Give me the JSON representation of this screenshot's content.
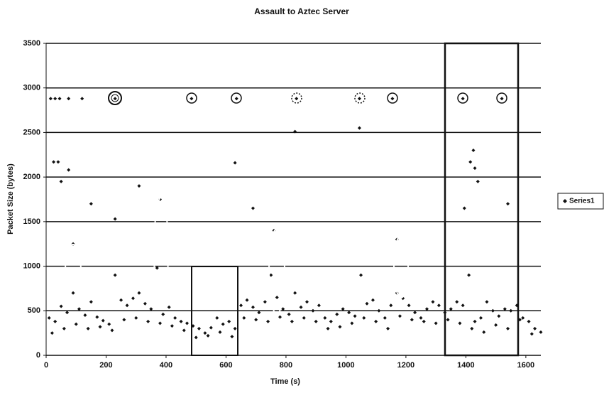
{
  "chart_data": {
    "type": "scatter",
    "title": "Assault to Aztec Server",
    "x_label": "Time (s)",
    "y_label": "Packet Size (bytes)",
    "xlim": [
      0,
      1650
    ],
    "ylim": [
      0,
      3500
    ],
    "xticks": [
      0,
      200,
      400,
      600,
      800,
      1000,
      1200,
      1400,
      1600
    ],
    "yticks": [
      0,
      500,
      1000,
      1500,
      2000,
      2500,
      3000,
      3500
    ],
    "grid": true,
    "legend": "right",
    "series": [
      {
        "name": "Series1",
        "color": "#111111",
        "x": [
          10,
          30,
          50,
          70,
          90,
          110,
          130,
          150,
          170,
          190,
          210,
          230,
          250,
          270,
          290,
          310,
          330,
          350,
          370,
          390,
          410,
          430,
          450,
          470,
          490,
          510,
          530,
          550,
          570,
          590,
          610,
          630,
          650,
          670,
          690,
          710,
          730,
          750,
          770,
          790,
          810,
          830,
          850,
          870,
          890,
          910,
          930,
          950,
          970,
          990,
          1010,
          1030,
          1050,
          1070,
          1090,
          1110,
          1130,
          1150,
          1170,
          1190,
          1210,
          1230,
          1250,
          1270,
          1290,
          1310,
          1330,
          1350,
          1370,
          1390,
          1410,
          1430,
          1450,
          1470,
          1490,
          1510,
          1530,
          1550,
          1570,
          1590,
          1610,
          1630,
          1650,
          20,
          60,
          100,
          140,
          180,
          220,
          260,
          300,
          340,
          380,
          420,
          460,
          500,
          540,
          580,
          620,
          660,
          700,
          740,
          780,
          820,
          860,
          900,
          940,
          980,
          1020,
          1060,
          1100,
          1140,
          1180,
          1220,
          1260,
          1300,
          1340,
          1380,
          1420,
          1460,
          1500,
          1540,
          1580,
          1620,
          15,
          30,
          45,
          75,
          120,
          230,
          485,
          635,
          835,
          1045,
          1155,
          1390,
          1520,
          25,
          40,
          75,
          50,
          310,
          150,
          230,
          630,
          830,
          1045,
          1415,
          1425,
          1430,
          1440,
          1395,
          1540,
          380,
          760,
          690,
          1170,
          90
        ],
        "values": [
          420,
          380,
          550,
          480,
          700,
          520,
          450,
          600,
          430,
          390,
          350,
          900,
          620,
          560,
          640,
          700,
          580,
          520,
          980,
          460,
          540,
          420,
          380,
          360,
          330,
          300,
          250,
          310,
          420,
          350,
          380,
          300,
          560,
          620,
          540,
          480,
          600,
          900,
          650,
          520,
          460,
          700,
          540,
          600,
          500,
          560,
          420,
          380,
          460,
          520,
          480,
          440,
          900,
          580,
          620,
          500,
          420,
          560,
          700,
          640,
          560,
          480,
          420,
          520,
          600,
          560,
          480,
          520,
          600,
          560,
          900,
          380,
          420,
          600,
          500,
          440,
          520,
          500,
          560,
          420,
          380,
          300,
          260,
          250,
          300,
          350,
          300,
          320,
          280,
          400,
          420,
          380,
          360,
          330,
          280,
          200,
          220,
          260,
          210,
          420,
          400,
          380,
          430,
          380,
          420,
          380,
          300,
          320,
          360,
          420,
          380,
          300,
          440,
          400,
          380,
          360,
          400,
          360,
          300,
          260,
          340,
          300,
          400,
          240,
          2880,
          2880,
          2880,
          2880,
          2880,
          2880,
          2880,
          2880,
          2880,
          2880,
          2880,
          2880,
          2880,
          2170,
          2170,
          2080,
          1950,
          1900,
          1700,
          1530,
          2160,
          2510,
          2550,
          2170,
          2300,
          2100,
          1950,
          1650,
          1700,
          1750,
          1400,
          1650,
          1300,
          1250
        ]
      }
    ]
  }
}
